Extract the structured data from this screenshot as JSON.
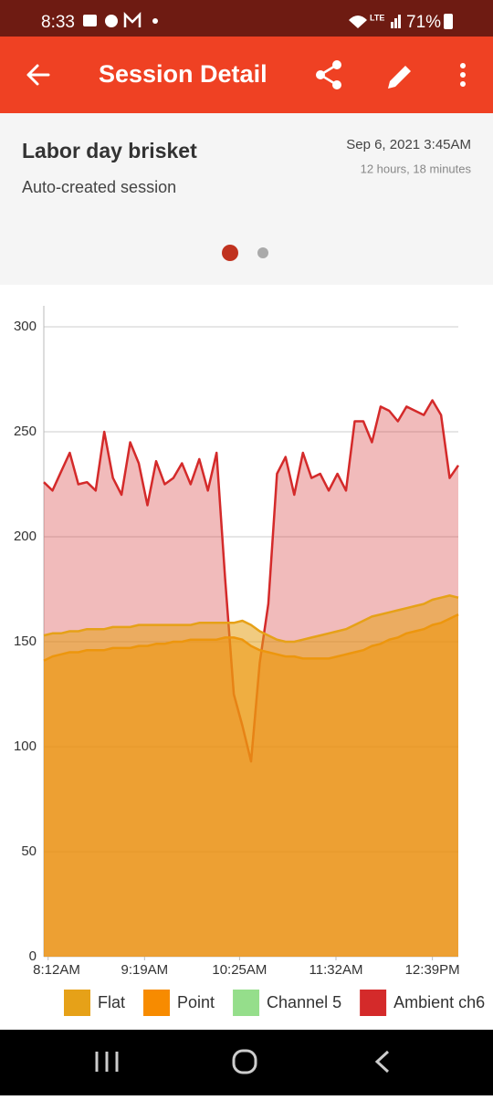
{
  "status_bar": {
    "time": "8:33",
    "network": "LTE",
    "battery": "71%"
  },
  "app_bar": {
    "title": "Session Detail"
  },
  "session": {
    "name": "Labor day brisket",
    "description": "Auto-created session",
    "date": "Sep 6, 2021 3:45AM",
    "duration": "12 hours, 18 minutes"
  },
  "chart_data": {
    "type": "area",
    "x": [
      489,
      495,
      501,
      507,
      513,
      519,
      525,
      531,
      537,
      543,
      549,
      555,
      561,
      567,
      573,
      579,
      585,
      591,
      597,
      603,
      609,
      615,
      621,
      627,
      633,
      639,
      645,
      651,
      657,
      663,
      669,
      675,
      681,
      687,
      693,
      699,
      705,
      711,
      717,
      723,
      729,
      735,
      741,
      747,
      753,
      759,
      765,
      771,
      777
    ],
    "xlim": [
      489,
      777
    ],
    "xticks": [
      {
        "value": 492,
        "label": "8:12AM"
      },
      {
        "value": 559,
        "label": "9:19AM"
      },
      {
        "value": 625,
        "label": "10:25AM"
      },
      {
        "value": 692,
        "label": "11:32AM"
      },
      {
        "value": 759,
        "label": "12:39PM"
      }
    ],
    "ylim": [
      0,
      310
    ],
    "yticks": [
      0,
      50,
      100,
      150,
      200,
      250,
      300
    ],
    "grid": true,
    "legend": "bottom",
    "series": [
      {
        "name": "Flat",
        "color": "#e6a118",
        "values": [
          153,
          154,
          154,
          155,
          155,
          156,
          156,
          156,
          157,
          157,
          157,
          158,
          158,
          158,
          158,
          158,
          158,
          158,
          159,
          159,
          159,
          159,
          159,
          160,
          158,
          155,
          153,
          151,
          150,
          150,
          151,
          152,
          153,
          154,
          155,
          156,
          158,
          160,
          162,
          163,
          164,
          165,
          166,
          167,
          168,
          170,
          171,
          172,
          171
        ]
      },
      {
        "name": "Point",
        "color": "#f78b00",
        "values": [
          141,
          143,
          144,
          145,
          145,
          146,
          146,
          146,
          147,
          147,
          147,
          148,
          148,
          149,
          149,
          150,
          150,
          151,
          151,
          151,
          151,
          152,
          152,
          151,
          148,
          146,
          145,
          144,
          143,
          143,
          142,
          142,
          142,
          142,
          143,
          144,
          145,
          146,
          148,
          149,
          151,
          152,
          154,
          155,
          156,
          158,
          159,
          161,
          163
        ]
      },
      {
        "name": "Channel 5",
        "color": "#95de8b",
        "values": [
          null,
          null,
          null,
          null,
          null,
          null,
          null,
          null,
          null,
          null,
          null,
          null,
          null,
          null,
          null,
          null,
          null,
          null,
          null,
          null,
          null,
          null,
          null,
          null,
          null,
          null,
          null,
          null,
          null,
          null,
          null,
          null,
          null,
          null,
          null,
          null,
          null,
          null,
          null,
          null,
          null,
          null,
          null,
          null,
          null,
          null,
          null,
          null,
          null
        ]
      },
      {
        "name": "Ambient ch6",
        "color": "#d42a2a",
        "values": [
          226,
          222,
          231,
          240,
          225,
          226,
          222,
          250,
          228,
          220,
          245,
          235,
          215,
          236,
          225,
          228,
          235,
          225,
          237,
          222,
          240,
          180,
          125,
          110,
          93,
          140,
          168,
          230,
          238,
          220,
          240,
          228,
          230,
          222,
          230,
          222,
          255,
          255,
          245,
          262,
          260,
          255,
          262,
          260,
          258,
          265,
          258,
          228,
          234
        ]
      }
    ]
  }
}
